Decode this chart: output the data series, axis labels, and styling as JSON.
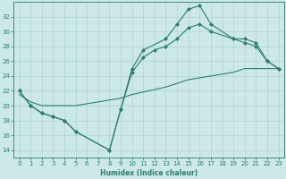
{
  "xlabel": "Humidex (Indice chaleur)",
  "bg_color": "#cce8e8",
  "line_color": "#2e7d6e",
  "grid_color": "#aacece",
  "xlim": [
    -0.5,
    23.5
  ],
  "ylim": [
    13,
    34
  ],
  "xticks": [
    0,
    1,
    2,
    3,
    4,
    5,
    6,
    7,
    8,
    9,
    10,
    11,
    12,
    13,
    14,
    15,
    16,
    17,
    18,
    19,
    20,
    21,
    22,
    23
  ],
  "yticks": [
    14,
    16,
    18,
    20,
    22,
    24,
    26,
    28,
    30,
    32
  ],
  "series1_x": [
    0,
    1,
    2,
    3,
    4,
    5,
    8,
    9,
    10,
    11,
    13,
    14,
    15,
    16,
    17,
    19,
    20,
    21,
    22,
    23
  ],
  "series1_y": [
    22.0,
    20.0,
    19.0,
    18.5,
    18.0,
    16.5,
    14.0,
    19.5,
    25.0,
    27.5,
    29.0,
    31.0,
    33.0,
    33.5,
    31.0,
    29.0,
    28.5,
    28.0,
    26.0,
    25.0
  ],
  "series2_x": [
    0,
    1,
    2,
    3,
    4,
    5,
    8,
    9,
    10,
    11,
    12,
    13,
    14,
    15,
    16,
    17,
    19,
    20,
    21,
    22,
    23
  ],
  "series2_y": [
    22.0,
    20.0,
    19.0,
    18.5,
    18.0,
    16.5,
    14.0,
    19.5,
    24.5,
    26.5,
    27.5,
    28.0,
    29.0,
    30.5,
    31.0,
    30.0,
    29.0,
    29.0,
    28.5,
    26.0,
    25.0
  ],
  "series3_x": [
    0,
    1,
    2,
    3,
    5,
    9,
    10,
    13,
    15,
    17,
    19,
    20,
    21,
    23
  ],
  "series3_y": [
    21.5,
    20.5,
    20.0,
    20.0,
    20.0,
    21.0,
    21.5,
    22.5,
    23.5,
    24.0,
    24.5,
    25.0,
    25.0,
    25.0
  ],
  "marker": "D",
  "markersize": 2.0,
  "linewidth": 0.8,
  "tick_labelsize": 5,
  "xlabel_fontsize": 5.5,
  "xlabel_fontweight": "bold"
}
